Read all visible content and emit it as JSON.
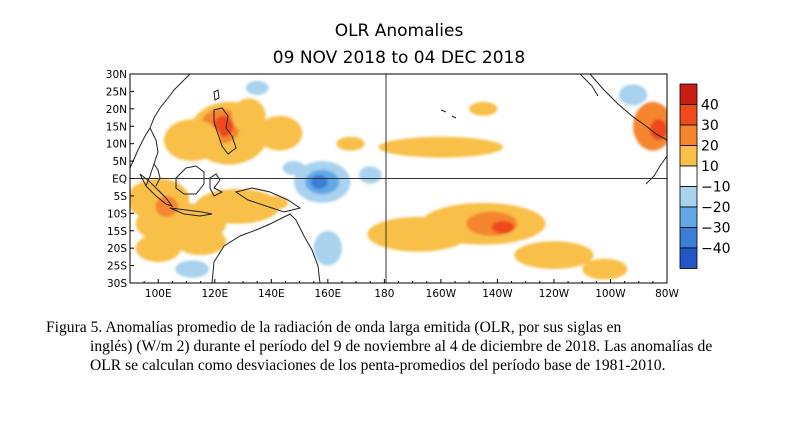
{
  "chart_data": {
    "type": "heatmap",
    "title": "OLR Anomalies",
    "subtitle": "09 NOV 2018 to 04 DEC 2018",
    "x_tick_labels": [
      "100E",
      "120E",
      "140E",
      "160E",
      "180",
      "160W",
      "140W",
      "120W",
      "100W",
      "80W"
    ],
    "x_ticks_deg_east": [
      100,
      120,
      140,
      160,
      180,
      200,
      220,
      240,
      260,
      280
    ],
    "xlim_deg_east": [
      90,
      280
    ],
    "y_tick_labels": [
      "30N",
      "25N",
      "20N",
      "15N",
      "10N",
      "5N",
      "EQ",
      "5S",
      "10S",
      "15S",
      "20S",
      "25S",
      "30S"
    ],
    "y_ticks_lat": [
      30,
      25,
      20,
      15,
      10,
      5,
      0,
      -5,
      -10,
      -15,
      -20,
      -25,
      -30
    ],
    "ylim_lat": [
      -30,
      30
    ],
    "units": "W/m2",
    "colorbar": {
      "labels": [
        "40",
        "30",
        "20",
        "10",
        "−10",
        "−20",
        "−30",
        "−40"
      ],
      "bins": [
        {
          "range": [
            40,
            50
          ],
          "color": "#c81e14"
        },
        {
          "range": [
            30,
            40
          ],
          "color": "#ee4a1c"
        },
        {
          "range": [
            20,
            30
          ],
          "color": "#f5852e"
        },
        {
          "range": [
            10,
            20
          ],
          "color": "#f8c048"
        },
        {
          "range": [
            -10,
            10
          ],
          "color": "#ffffff"
        },
        {
          "range": [
            -20,
            -10
          ],
          "color": "#a8d2ee"
        },
        {
          "range": [
            -30,
            -20
          ],
          "color": "#63a8e6"
        },
        {
          "range": [
            -40,
            -30
          ],
          "color": "#3a7ed8"
        },
        {
          "range": [
            -50,
            -40
          ],
          "color": "#2456c8"
        }
      ]
    },
    "anomaly_regions": [
      {
        "lon": 125,
        "lat": 13,
        "rlon": 14,
        "rlat": 9,
        "value": 15
      },
      {
        "lon": 122,
        "lat": 15,
        "rlon": 7,
        "rlat": 5,
        "value": 25
      },
      {
        "lon": 123,
        "lat": 15,
        "rlon": 3.5,
        "rlat": 3,
        "value": 35
      },
      {
        "lon": 132,
        "lat": 18,
        "rlon": 6,
        "rlat": 5,
        "value": 15
      },
      {
        "lon": 112,
        "lat": 11,
        "rlon": 10,
        "rlat": 6,
        "value": 15
      },
      {
        "lon": 143,
        "lat": 13,
        "rlon": 8,
        "rlat": 5,
        "value": 15
      },
      {
        "lon": 168,
        "lat": 10,
        "rlon": 5,
        "rlat": 2,
        "value": 15
      },
      {
        "lon": 200,
        "lat": 9,
        "rlon": 22,
        "rlat": 3,
        "value": 15
      },
      {
        "lon": 215,
        "lat": 20,
        "rlon": 5,
        "rlat": 2,
        "value": 15
      },
      {
        "lon": 275,
        "lat": 15,
        "rlon": 7,
        "rlat": 7,
        "value": 25
      },
      {
        "lon": 277,
        "lat": 14,
        "rlon": 3,
        "rlat": 3,
        "value": 35
      },
      {
        "lon": 100,
        "lat": -6,
        "rlon": 11,
        "rlat": 6,
        "value": 15
      },
      {
        "lon": 108,
        "lat": -13,
        "rlon": 16,
        "rlat": 6,
        "value": 15
      },
      {
        "lon": 128,
        "lat": -8,
        "rlon": 15,
        "rlat": 5,
        "value": 15
      },
      {
        "lon": 115,
        "lat": -18,
        "rlon": 9,
        "rlat": 4,
        "value": 15
      },
      {
        "lon": 100,
        "lat": -20,
        "rlon": 8,
        "rlat": 4,
        "value": 15
      },
      {
        "lon": 103,
        "lat": -8,
        "rlon": 4,
        "rlat": 3,
        "value": 25
      },
      {
        "lon": 141,
        "lat": -7,
        "rlon": 5,
        "rlat": 2,
        "value": 15
      },
      {
        "lon": 192,
        "lat": -16,
        "rlon": 18,
        "rlat": 5,
        "value": 15
      },
      {
        "lon": 215,
        "lat": -13,
        "rlon": 22,
        "rlat": 6,
        "value": 15
      },
      {
        "lon": 218,
        "lat": -13,
        "rlon": 9,
        "rlat": 3.5,
        "value": 25
      },
      {
        "lon": 222,
        "lat": -14,
        "rlon": 4,
        "rlat": 1.8,
        "value": 35
      },
      {
        "lon": 240,
        "lat": -22,
        "rlon": 14,
        "rlat": 4,
        "value": 15
      },
      {
        "lon": 258,
        "lat": -26,
        "rlon": 8,
        "rlat": 3,
        "value": 15
      },
      {
        "lon": 158,
        "lat": -1,
        "rlon": 10,
        "rlat": 6,
        "value": -15
      },
      {
        "lon": 158,
        "lat": -1,
        "rlon": 6,
        "rlat": 3.5,
        "value": -25
      },
      {
        "lon": 157,
        "lat": -1,
        "rlon": 3,
        "rlat": 2,
        "value": -35
      },
      {
        "lon": 148,
        "lat": 3,
        "rlon": 4,
        "rlat": 2,
        "value": -15
      },
      {
        "lon": 175,
        "lat": 1,
        "rlon": 4,
        "rlat": 2.5,
        "value": -15
      },
      {
        "lon": 160,
        "lat": -20,
        "rlon": 5,
        "rlat": 5,
        "value": -15
      },
      {
        "lon": 112,
        "lat": -26,
        "rlon": 6,
        "rlat": 2.5,
        "value": -15
      },
      {
        "lon": 135,
        "lat": 26,
        "rlon": 4,
        "rlat": 2,
        "value": -15
      },
      {
        "lon": 268,
        "lat": 24,
        "rlon": 5,
        "rlat": 3,
        "value": -15
      }
    ]
  },
  "caption": {
    "first": "Figura 5. Anomalías promedio de la radiación de onda larga emitida (OLR, por sus siglas en",
    "rest": "inglés) (W/m 2) durante el período del 9 de noviembre al 4 de diciembre de 2018. Las anomalías de OLR se calculan como desviaciones de los penta-promedios del período base de 1981-2010."
  }
}
